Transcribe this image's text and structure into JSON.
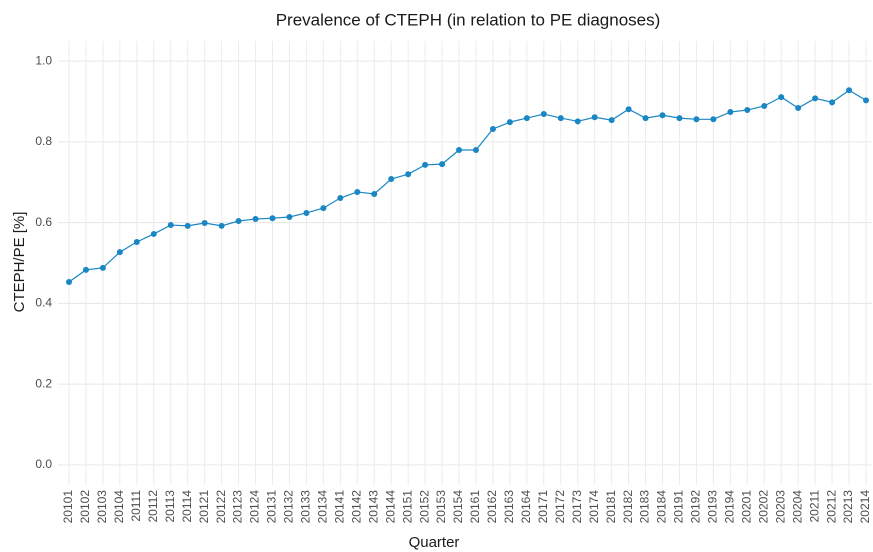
{
  "chart_data": {
    "type": "line",
    "title": "Prevalence of CTEPH (in relation to PE diagnoses)",
    "x_label": "Quarter",
    "y_label": "CTEPH/PE [%]",
    "categories": [
      "20101",
      "20102",
      "20103",
      "20104",
      "20111",
      "20112",
      "20113",
      "20114",
      "20121",
      "20122",
      "20123",
      "20124",
      "20131",
      "20132",
      "20133",
      "20134",
      "20141",
      "20142",
      "20143",
      "20144",
      "20151",
      "20152",
      "20153",
      "20154",
      "20161",
      "20162",
      "20163",
      "20164",
      "20171",
      "20172",
      "20173",
      "20174",
      "20181",
      "20182",
      "20183",
      "20184",
      "20191",
      "20192",
      "20193",
      "20194",
      "20201",
      "20202",
      "20203",
      "20204",
      "20211",
      "20212",
      "20213",
      "20214"
    ],
    "values": [
      0.453,
      0.483,
      0.488,
      0.527,
      0.552,
      0.572,
      0.594,
      0.592,
      0.599,
      0.592,
      0.604,
      0.609,
      0.611,
      0.614,
      0.624,
      0.636,
      0.661,
      0.676,
      0.671,
      0.708,
      0.72,
      0.743,
      0.745,
      0.78,
      0.78,
      0.832,
      0.849,
      0.859,
      0.869,
      0.859,
      0.851,
      0.861,
      0.854,
      0.881,
      0.859,
      0.866,
      0.859,
      0.856,
      0.856,
      0.874,
      0.879,
      0.889,
      0.911,
      0.884,
      0.908,
      0.898,
      0.928,
      0.903
    ],
    "color": "#1a87c4",
    "ylim": [
      -0.05,
      1.05
    ],
    "yticks": [
      {
        "value": 0,
        "label": "0.0"
      },
      0.2,
      0.4,
      0.6,
      0.8,
      {
        "value": 1,
        "label": "1.0"
      }
    ],
    "grid": true
  }
}
